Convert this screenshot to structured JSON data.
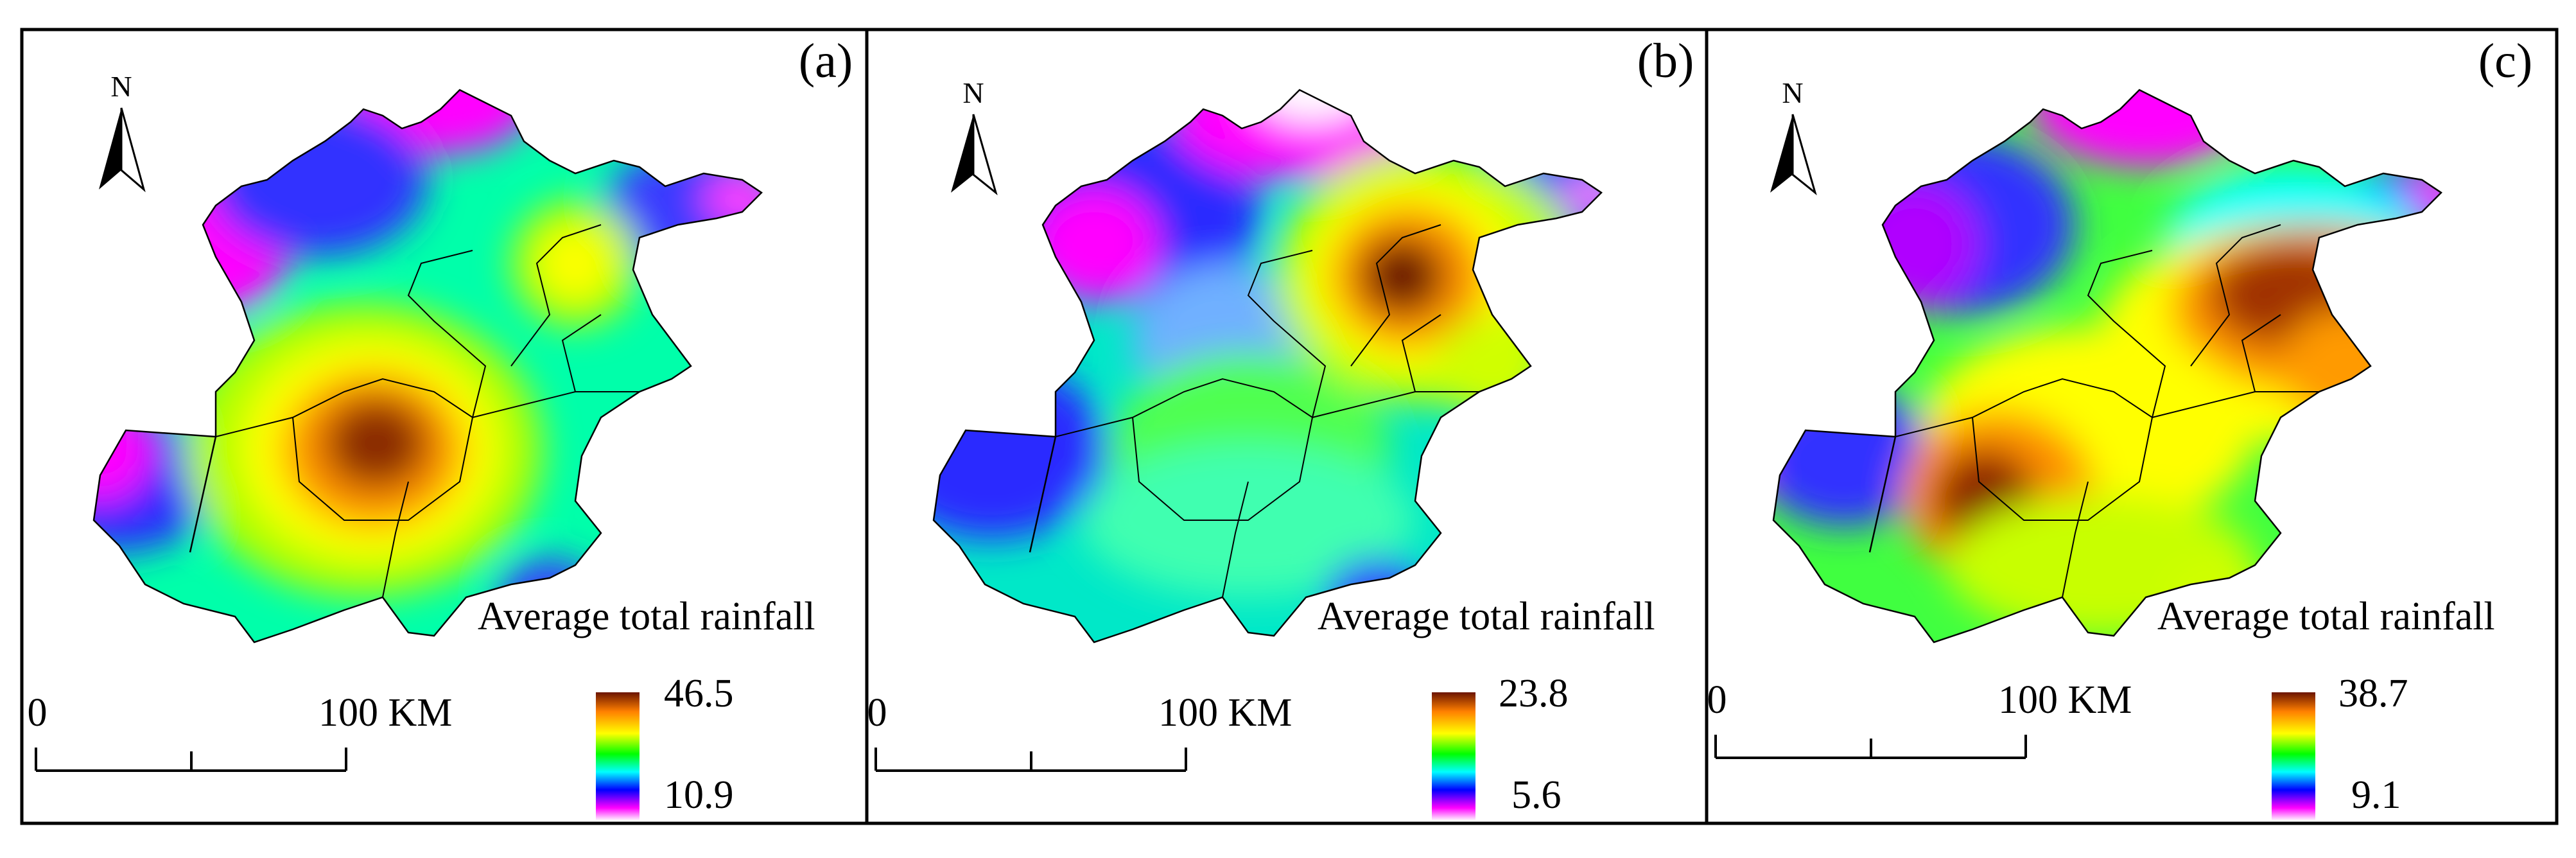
{
  "figure": {
    "panels": [
      {
        "label": "(a)",
        "north": "N",
        "legend_title": "Average total rainfall",
        "legend_max": "46.5",
        "legend_min": "10.9",
        "scale_start": "0",
        "scale_end": "100 KM",
        "hotspots": [
          {
            "name": "central-high",
            "intensity": 1.0
          },
          {
            "name": "north-east-moderate",
            "intensity": 0.55
          }
        ]
      },
      {
        "label": "(b)",
        "north": "N",
        "legend_title": "Average total rainfall",
        "legend_max": "23.8",
        "legend_min": "5.6",
        "scale_start": "0",
        "scale_end": "100 KM",
        "hotspots": [
          {
            "name": "north-east-high",
            "intensity": 1.0
          },
          {
            "name": "city-moderate",
            "intensity": 0.45
          }
        ]
      },
      {
        "label": "(c)",
        "north": "N",
        "legend_title": "Average total rainfall",
        "legend_max": "38.7",
        "legend_min": "9.1",
        "scale_start": "0",
        "scale_end": "100 KM",
        "hotspots": [
          {
            "name": "south-west-high",
            "intensity": 1.0
          },
          {
            "name": "north-east-high",
            "intensity": 0.9
          },
          {
            "name": "city-moderate",
            "intensity": 0.6
          }
        ]
      }
    ],
    "colormap": [
      "#ffffff",
      "#ff00ff",
      "#0000ff",
      "#00ffff",
      "#00ff00",
      "#ffff00",
      "#ff8000",
      "#6b1400"
    ]
  }
}
